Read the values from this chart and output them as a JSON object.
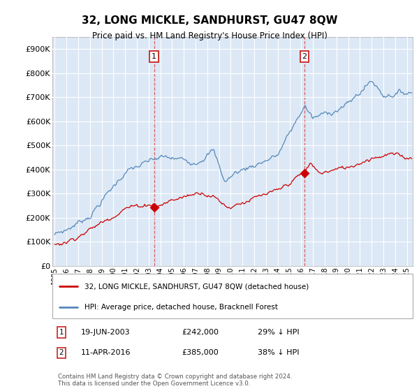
{
  "title": "32, LONG MICKLE, SANDHURST, GU47 8QW",
  "subtitle": "Price paid vs. HM Land Registry's House Price Index (HPI)",
  "bg_color": "#dce8f5",
  "legend_line1": "32, LONG MICKLE, SANDHURST, GU47 8QW (detached house)",
  "legend_line2": "HPI: Average price, detached house, Bracknell Forest",
  "line1_color": "#cc0000",
  "line2_color": "#5588bb",
  "annotation1": {
    "label": "1",
    "date": "19-JUN-2003",
    "price": "£242,000",
    "pct": "29% ↓ HPI",
    "x_year": 2003.47,
    "y_val": 242000
  },
  "annotation2": {
    "label": "2",
    "date": "11-APR-2016",
    "price": "£385,000",
    "pct": "38% ↓ HPI",
    "x_year": 2016.28,
    "y_val": 385000
  },
  "footer": "Contains HM Land Registry data © Crown copyright and database right 2024.\nThis data is licensed under the Open Government Licence v3.0.",
  "ylim": [
    0,
    950000
  ],
  "yticks": [
    0,
    100000,
    200000,
    300000,
    400000,
    500000,
    600000,
    700000,
    800000,
    900000
  ],
  "xlim_start": 1994.8,
  "xlim_end": 2025.5
}
